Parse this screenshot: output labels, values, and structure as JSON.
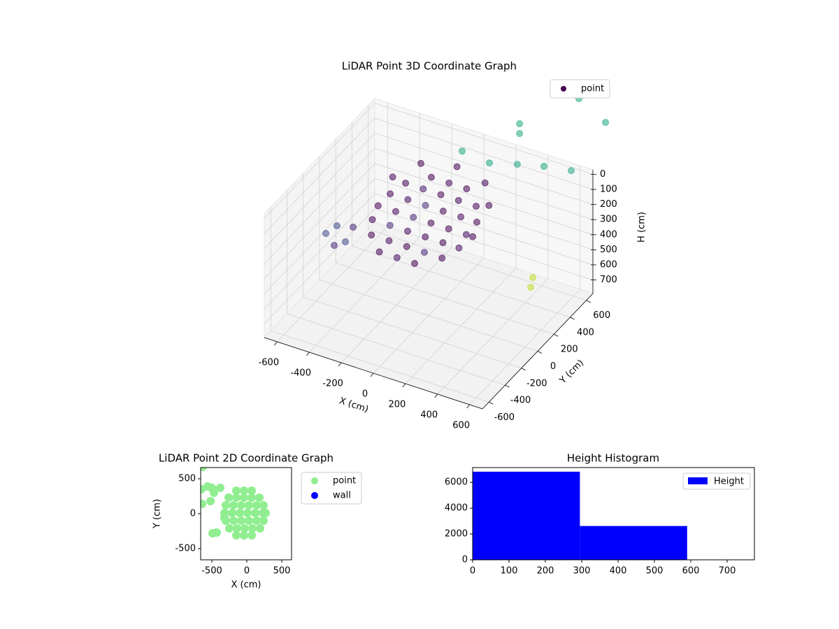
{
  "chart_data": [
    {
      "type": "scatter3d",
      "title": "LiDAR Point 3D Coordinate Graph",
      "xlabel": "X (cm)",
      "ylabel": "Y (cm)",
      "zlabel": "H (cm)",
      "xlim": [
        -680,
        680
      ],
      "ylim": [
        -680,
        680
      ],
      "zlim": [
        790,
        -30
      ],
      "xticks": [
        -600,
        -400,
        -200,
        0,
        200,
        400,
        600
      ],
      "yticks": [
        -600,
        -400,
        -200,
        0,
        200,
        400,
        600
      ],
      "zticks": [
        0,
        100,
        200,
        300,
        400,
        500,
        600,
        700
      ],
      "series": [
        {
          "name": "point",
          "color": "#440154",
          "x": [
            -150,
            -40,
            70,
            -260,
            -150,
            -40,
            70,
            180,
            -300,
            -190,
            -80,
            30,
            140,
            240,
            -320,
            -210,
            -100,
            10,
            120,
            230,
            270,
            -300,
            -190,
            -80,
            30,
            140,
            240,
            -250,
            -140,
            -30,
            80,
            190,
            -150,
            -40,
            70,
            -200,
            0,
            200,
            300,
            -300,
            -438,
            -386,
            -316,
            -369,
            -268,
            -120,
            50,
            224,
            390,
            560,
            238,
            238,
            608,
            774,
            447,
            434
          ],
          "y": [
            330,
            330,
            330,
            230,
            230,
            230,
            230,
            230,
            120,
            120,
            120,
            120,
            120,
            120,
            10,
            10,
            10,
            10,
            10,
            10,
            10,
            -100,
            -100,
            -100,
            -100,
            -100,
            -100,
            -210,
            -210,
            -210,
            -210,
            -210,
            -310,
            -310,
            -310,
            300,
            350,
            300,
            150,
            150,
            -400,
            -400,
            -400,
            -400,
            -400,
            650,
            650,
            650,
            650,
            650,
            650,
            650,
            650,
            650,
            400,
            400
          ],
          "z": [
            111,
            111,
            111,
            132,
            132,
            132,
            132,
            132,
            155,
            155,
            155,
            155,
            155,
            155,
            179,
            179,
            179,
            179,
            179,
            179,
            179,
            202,
            202,
            202,
            202,
            202,
            202,
            225,
            225,
            225,
            225,
            225,
            246,
            246,
            246,
            20,
            0,
            10,
            40,
            60,
            173,
            234,
            186,
            98,
            72,
            107,
            126,
            75,
            31,
            0,
            -199,
            -134,
            -494,
            -394,
            607,
            677
          ],
          "colors": [
            "#440154",
            "#46085c",
            "#440154",
            "#440154",
            "#481769",
            "#440154",
            "#46085c",
            "#440154",
            "#440154",
            "#46085c",
            "#482878",
            "#440154",
            "#46085c",
            "#440154",
            "#440154",
            "#46085c",
            "#482878",
            "#440154",
            "#440154",
            "#46085c",
            "#440154",
            "#440154",
            "#482878",
            "#46085c",
            "#440154",
            "#440154",
            "#46085c",
            "#440154",
            "#46085c",
            "#440154",
            "#482878",
            "#440154",
            "#440154",
            "#46085c",
            "#440154",
            "#440154",
            "#440154",
            "#46085c",
            "#440154",
            "#46085c",
            "#3e4a89",
            "#482878",
            "#3e4a89",
            "#3e4a89",
            "#482878",
            "#22a884",
            "#22a884",
            "#22a884",
            "#22a884",
            "#22a884",
            "#22a884",
            "#22a884",
            "#22a884",
            "#22a884",
            "#bddf26",
            "#bddf26"
          ]
        }
      ]
    },
    {
      "type": "scatter",
      "title": "LiDAR Point 2D Coordinate Graph",
      "xlabel": "X (cm)",
      "ylabel": "Y (cm)",
      "xlim": [
        -660,
        640
      ],
      "ylim": [
        -660,
        660
      ],
      "xticks": [
        -500,
        0,
        500
      ],
      "yticks": [
        -500,
        0,
        500
      ],
      "series": [
        {
          "name": "point",
          "color": "#90ee90",
          "x": [
            -630,
            -650,
            -640,
            -560,
            -520,
            -500,
            -470,
            -490,
            -430,
            -320,
            -150,
            -40,
            70,
            -260,
            -150,
            -40,
            70,
            180,
            -300,
            -190,
            -80,
            30,
            140,
            240,
            -320,
            -210,
            -100,
            10,
            120,
            230,
            270,
            -300,
            -190,
            -80,
            30,
            140,
            240,
            -250,
            -140,
            -30,
            80,
            190,
            -150,
            -40,
            70,
            -380
          ],
          "values": [
            670,
            350,
            140,
            390,
            180,
            370,
            300,
            -280,
            -270,
            -60,
            330,
            330,
            330,
            230,
            230,
            230,
            230,
            230,
            120,
            120,
            120,
            120,
            120,
            120,
            10,
            10,
            10,
            10,
            10,
            10,
            10,
            -100,
            -100,
            -100,
            -100,
            -100,
            -100,
            -210,
            -210,
            -210,
            -210,
            -210,
            -310,
            -310,
            -310,
            370
          ]
        },
        {
          "name": "wall",
          "color": "#0000ff",
          "x": [],
          "values": []
        }
      ]
    },
    {
      "type": "histogram",
      "title": "Height Histogram",
      "xlim": [
        0,
        775
      ],
      "ylim": [
        0,
        7150
      ],
      "xticks": [
        0,
        100,
        200,
        300,
        400,
        500,
        600,
        700
      ],
      "yticks": [
        0,
        2000,
        4000,
        6000
      ],
      "bins": [
        0,
        295,
        590
      ],
      "series": [
        {
          "name": "Height",
          "color": "#0000ff",
          "values": [
            6830,
            2620
          ]
        }
      ]
    }
  ]
}
